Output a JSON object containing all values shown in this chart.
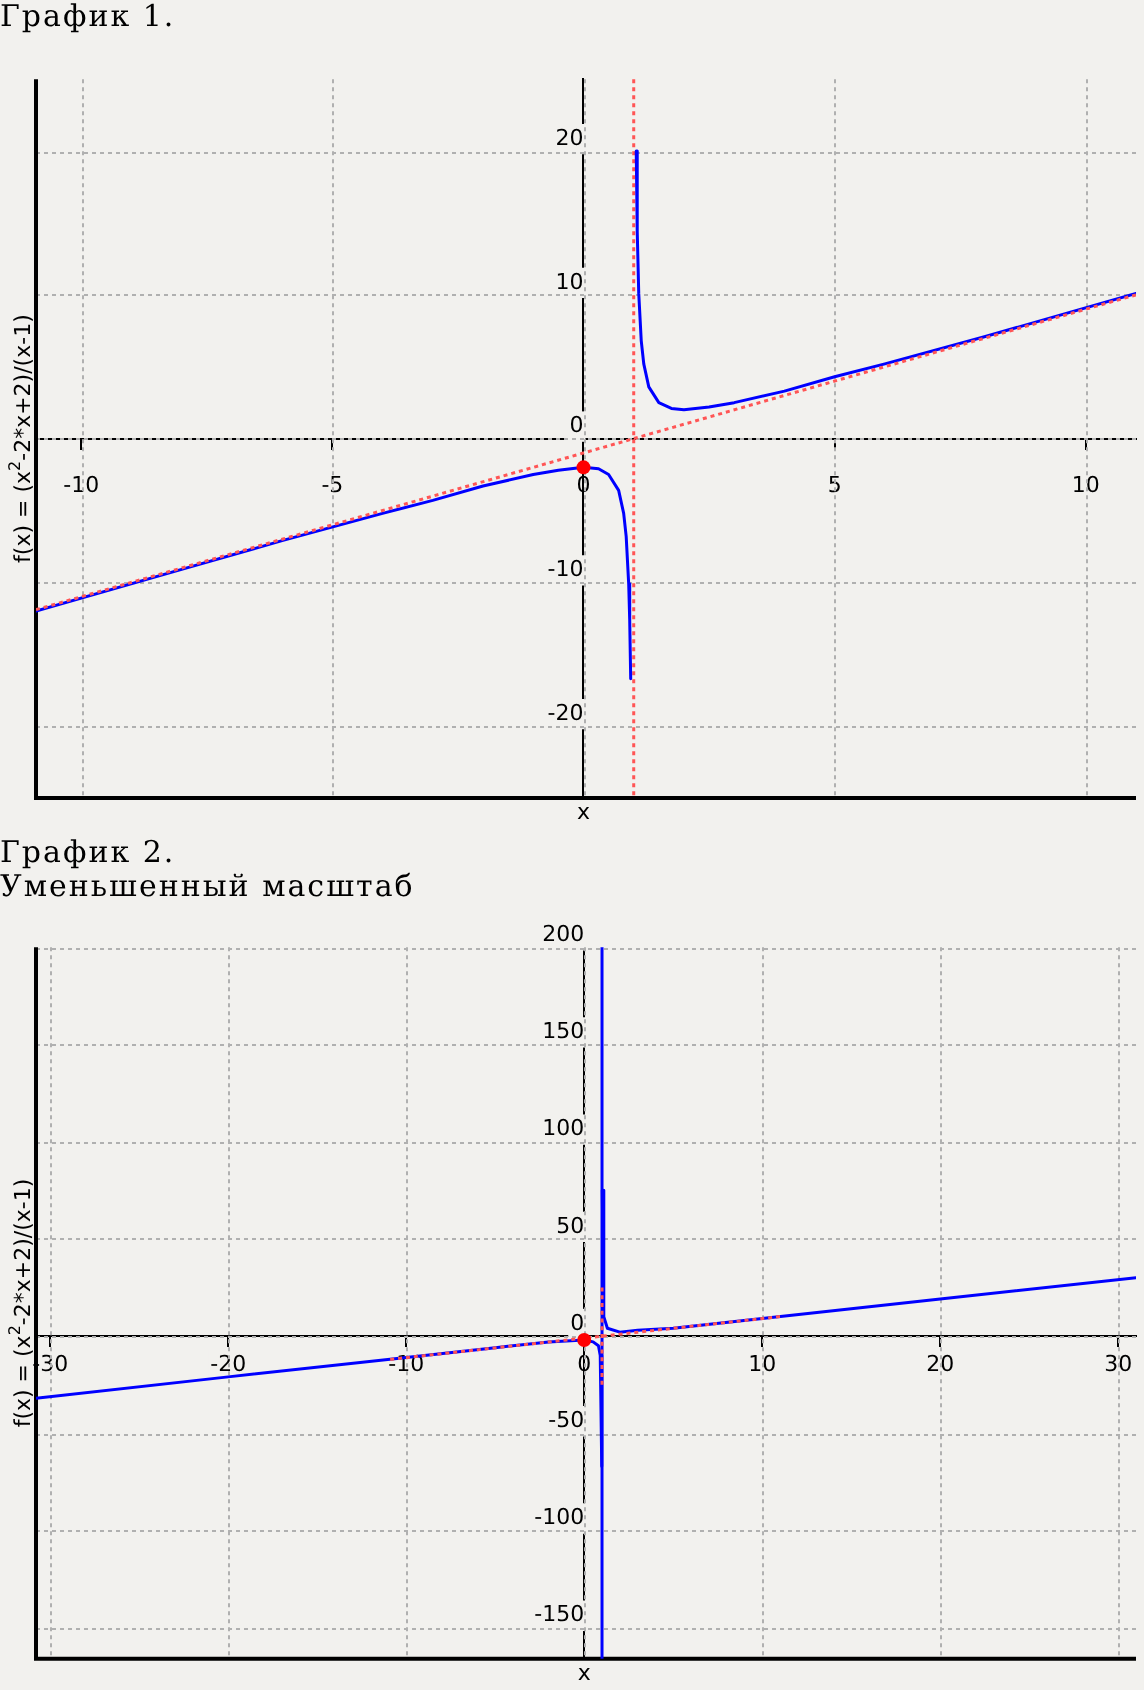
{
  "chart_data": [
    {
      "type": "line",
      "title": "График 1.",
      "xlabel": "x",
      "ylabel": "f(x) = (x$^{2}$-2*x+2)/(x-1)",
      "xlim": [
        -10.9,
        11
      ],
      "ylim": [
        -25,
        25
      ],
      "xticks": [
        -10,
        -5,
        0,
        5,
        10
      ],
      "yticks": [
        -20,
        -10,
        0,
        10,
        20
      ],
      "grid": true,
      "legend": false,
      "series": [
        {
          "color": "#0000ff",
          "x": [
            -10.9,
            -8,
            -6,
            -4,
            -3,
            -2,
            -1,
            -0.5,
            0,
            0.3,
            0.5,
            0.7,
            0.8,
            0.85,
            0.9,
            0.92,
            0.94
          ],
          "values": [
            -12,
            -9.1,
            -7.1,
            -5.2,
            -4.3,
            -3.3,
            -2.5,
            -2.2,
            -2,
            -2.1,
            -2.5,
            -3.6,
            -5.2,
            -6.8,
            -10.1,
            -12.6,
            -16.7
          ]
        },
        {
          "color": "#0000ff",
          "x": [
            1.05,
            1.07,
            1.1,
            1.15,
            1.2,
            1.3,
            1.5,
            1.75,
            2,
            2.5,
            3,
            4,
            5,
            6,
            8,
            11
          ],
          "values": [
            20,
            14.4,
            10.1,
            6.8,
            5.2,
            3.6,
            2.5,
            2.1,
            2,
            2.2,
            2.5,
            3.3,
            4.3,
            5.2,
            7.1,
            10.1
          ]
        },
        {
          "color": "#ff5555",
          "line_style": "dotted",
          "x": [
            -10.9,
            11
          ],
          "values": [
            -11.9,
            10
          ]
        },
        {
          "type": "scatter",
          "color": "#ff0000",
          "marker": "circle",
          "x": [
            0
          ],
          "values": [
            -2
          ]
        }
      ],
      "ref_lines": [
        {
          "axis": "x",
          "value": 1,
          "label": null,
          "color": "#ff5555",
          "line_style": "dotted"
        }
      ]
    },
    {
      "type": "line",
      "title": "График 2.",
      "subtitle": "Уменьшенный масштаб",
      "xlabel": "x",
      "ylabel": "f(x) = (x$^{2}$-2*x+2)/(x-1)",
      "xlim": [
        -30.8,
        31
      ],
      "ylim": [
        -166,
        200
      ],
      "xticks": [
        -30,
        -20,
        -10,
        0,
        10,
        20,
        30
      ],
      "yticks": [
        -150,
        -100,
        -50,
        0,
        50,
        100,
        150,
        200
      ],
      "grid": true,
      "legend": false,
      "series": [
        {
          "color": "#0000ff",
          "x": [
            -30.8,
            -20,
            -10,
            -5,
            -2,
            0,
            0.5,
            0.8,
            0.9,
            0.985
          ],
          "values": [
            -32,
            -21,
            -11,
            -6,
            -3,
            -2,
            -3,
            -5,
            -10,
            -67
          ]
        },
        {
          "color": "#0000ff",
          "x": [
            1.0133,
            1.1,
            1.3,
            2,
            3,
            5,
            10,
            20,
            31
          ],
          "values": [
            75,
            10,
            4,
            2,
            3,
            4,
            9,
            19,
            30
          ]
        },
        {
          "color": "#ff5555",
          "line_style": "dotted",
          "x": [
            -10.9,
            11
          ],
          "values": [
            -12,
            10
          ]
        },
        {
          "color": "#ff5555",
          "line_style": "dotted",
          "x": [
            1,
            1
          ],
          "values": [
            -25,
            25
          ]
        },
        {
          "type": "scatter",
          "color": "#ff0000",
          "marker": "circle",
          "x": [
            0
          ],
          "values": [
            -2
          ]
        }
      ],
      "ref_lines": [
        {
          "axis": "x",
          "value": 1,
          "label": null,
          "color": "#0000ff",
          "line_style": "solid"
        }
      ]
    }
  ]
}
